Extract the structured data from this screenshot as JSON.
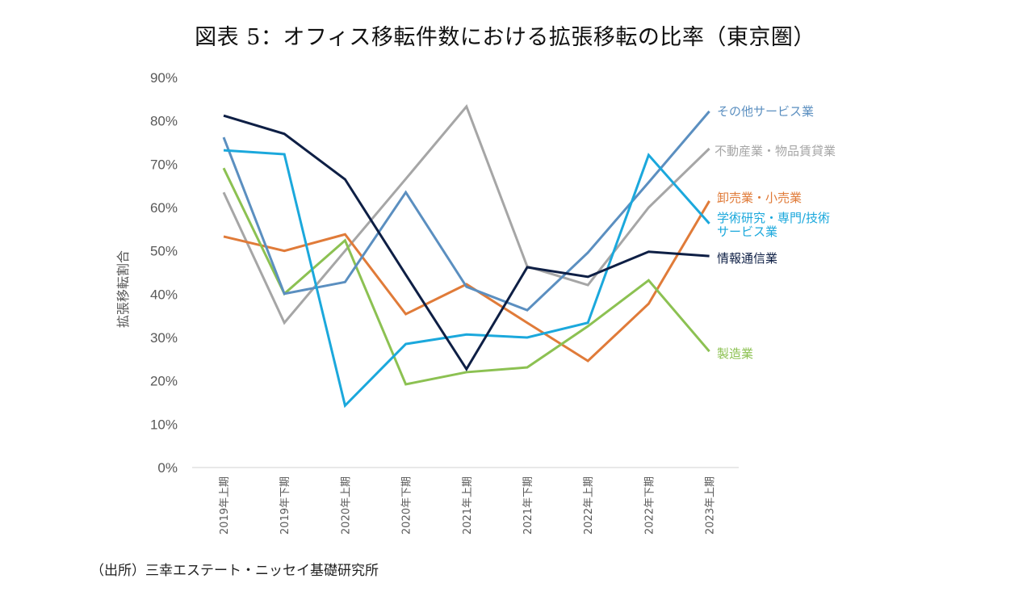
{
  "title": "図表 5：オフィス移転件数における拡張移転の比率（東京圏）",
  "source": "（出所）三幸エステート・ニッセイ基礎研究所",
  "chart_data": {
    "type": "line",
    "title": "図表 5：オフィス移転件数における拡張移転の比率（東京圏）",
    "xlabel": "",
    "ylabel": "拡張移転割合",
    "ylim": [
      0,
      90
    ],
    "yticks": [
      "0%",
      "10%",
      "20%",
      "30%",
      "40%",
      "50%",
      "60%",
      "70%",
      "80%",
      "90%"
    ],
    "ytick_values": [
      0,
      10,
      20,
      30,
      40,
      50,
      60,
      70,
      80,
      90
    ],
    "categories": [
      "2019年上期",
      "2019年下期",
      "2020年上期",
      "2020年下期",
      "2021年上期",
      "2021年下期",
      "2022年上期",
      "2022年下期",
      "2023年上期"
    ],
    "grid": false,
    "legend_placement": "line-end labels (right)",
    "series": [
      {
        "name": "その他サービス業",
        "color": "#5b8fc0",
        "values": [
          76.2,
          40.1,
          42.8,
          63.5,
          41.7,
          36.3,
          49.6,
          65.8,
          82.2
        ]
      },
      {
        "name": "不動産業・物品賃貸業",
        "color": "#a6a6a6",
        "values": [
          63.5,
          33.4,
          50.0,
          66.6,
          83.3,
          46.4,
          42.1,
          60.0,
          73.6
        ]
      },
      {
        "name": "卸売業・小売業",
        "color": "#e07b39",
        "values": [
          53.3,
          50.0,
          53.8,
          35.4,
          42.3,
          33.4,
          24.6,
          37.8,
          61.5
        ]
      },
      {
        "name": "学術研究・専門/技術サービス業",
        "name_lines": [
          "学術研究・専門/技術",
          "サービス業"
        ],
        "color": "#1ba8dc",
        "values": [
          73.2,
          72.3,
          14.3,
          28.5,
          30.7,
          30.0,
          33.4,
          72.1,
          56.3
        ]
      },
      {
        "name": "情報通信業",
        "color": "#0e1f45",
        "values": [
          81.2,
          77.0,
          66.5,
          44.5,
          22.7,
          46.2,
          44.0,
          49.8,
          48.8
        ]
      },
      {
        "name": "製造業",
        "color": "#8cc152",
        "values": [
          69.1,
          40.1,
          52.4,
          19.2,
          22.0,
          23.1,
          32.6,
          43.2,
          26.8
        ]
      }
    ]
  }
}
